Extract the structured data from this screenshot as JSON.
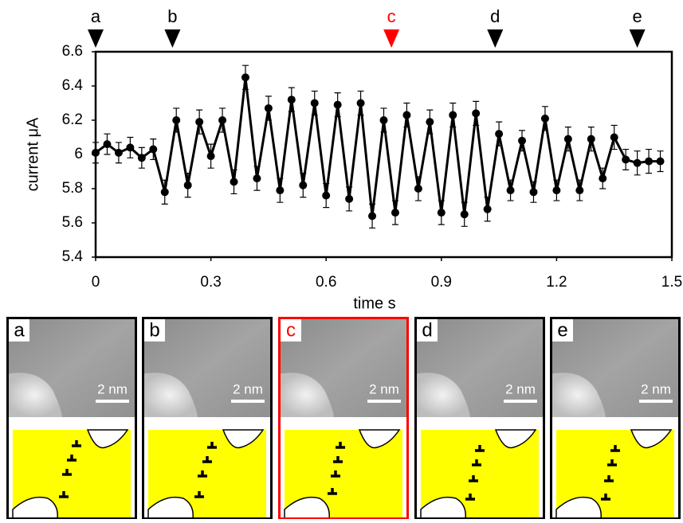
{
  "chart_data": {
    "type": "line",
    "xlabel": "time s",
    "ylabel": "current μA",
    "x": [
      0,
      0.03,
      0.06,
      0.09,
      0.12,
      0.15,
      0.18,
      0.21,
      0.24,
      0.27,
      0.3,
      0.33,
      0.36,
      0.39,
      0.42,
      0.45,
      0.48,
      0.51,
      0.54,
      0.57,
      0.6,
      0.63,
      0.66,
      0.69,
      0.72,
      0.75,
      0.78,
      0.81,
      0.84,
      0.87,
      0.9,
      0.93,
      0.96,
      0.99,
      1.02,
      1.05,
      1.08,
      1.11,
      1.14,
      1.17,
      1.2,
      1.23,
      1.26,
      1.29,
      1.32,
      1.35,
      1.38,
      1.41,
      1.44,
      1.47
    ],
    "values": [
      6.01,
      6.06,
      6.01,
      6.04,
      5.98,
      6.03,
      5.78,
      6.2,
      5.82,
      6.19,
      5.99,
      6.2,
      5.84,
      6.45,
      5.86,
      6.27,
      5.79,
      6.32,
      5.82,
      6.3,
      5.76,
      6.29,
      5.74,
      6.3,
      5.64,
      6.2,
      5.66,
      6.23,
      5.8,
      6.19,
      5.66,
      6.23,
      5.65,
      6.24,
      5.68,
      6.12,
      5.79,
      6.08,
      5.78,
      6.21,
      5.79,
      6.09,
      5.79,
      6.09,
      5.86,
      6.1,
      5.97,
      5.95,
      5.96,
      5.96
    ],
    "errors": [
      0.06,
      0.06,
      0.06,
      0.06,
      0.06,
      0.06,
      0.07,
      0.07,
      0.07,
      0.07,
      0.07,
      0.07,
      0.07,
      0.07,
      0.07,
      0.07,
      0.07,
      0.07,
      0.07,
      0.07,
      0.07,
      0.07,
      0.07,
      0.07,
      0.07,
      0.07,
      0.07,
      0.07,
      0.07,
      0.07,
      0.07,
      0.07,
      0.07,
      0.07,
      0.07,
      0.07,
      0.06,
      0.06,
      0.06,
      0.07,
      0.06,
      0.07,
      0.06,
      0.07,
      0.06,
      0.07,
      0.06,
      0.07,
      0.07,
      0.06
    ],
    "color": "#000000",
    "xlim": [
      0,
      1.5
    ],
    "xticks": [
      0,
      0.3,
      0.6,
      0.9,
      1.2,
      1.5
    ],
    "ylim": [
      5.4,
      6.6
    ],
    "yticks": [
      5.4,
      5.6,
      5.8,
      6,
      6.2,
      6.4,
      6.6
    ],
    "markers": [
      {
        "label": "a",
        "x": 0,
        "color": "#000000"
      },
      {
        "label": "b",
        "x": 0.2,
        "color": "#000000"
      },
      {
        "label": "c",
        "x": 0.77,
        "color": "#ff0000"
      },
      {
        "label": "d",
        "x": 1.04,
        "color": "#000000"
      },
      {
        "label": "e",
        "x": 1.41,
        "color": "#000000"
      }
    ]
  },
  "panels": [
    {
      "label": "a",
      "scale": "2 nm",
      "border_color": "#000000"
    },
    {
      "label": "b",
      "scale": "2 nm",
      "border_color": "#000000"
    },
    {
      "label": "c",
      "scale": "2 nm",
      "border_color": "#ff0000"
    },
    {
      "label": "d",
      "scale": "2 nm",
      "border_color": "#000000"
    },
    {
      "label": "e",
      "scale": "2 nm",
      "border_color": "#000000"
    }
  ]
}
